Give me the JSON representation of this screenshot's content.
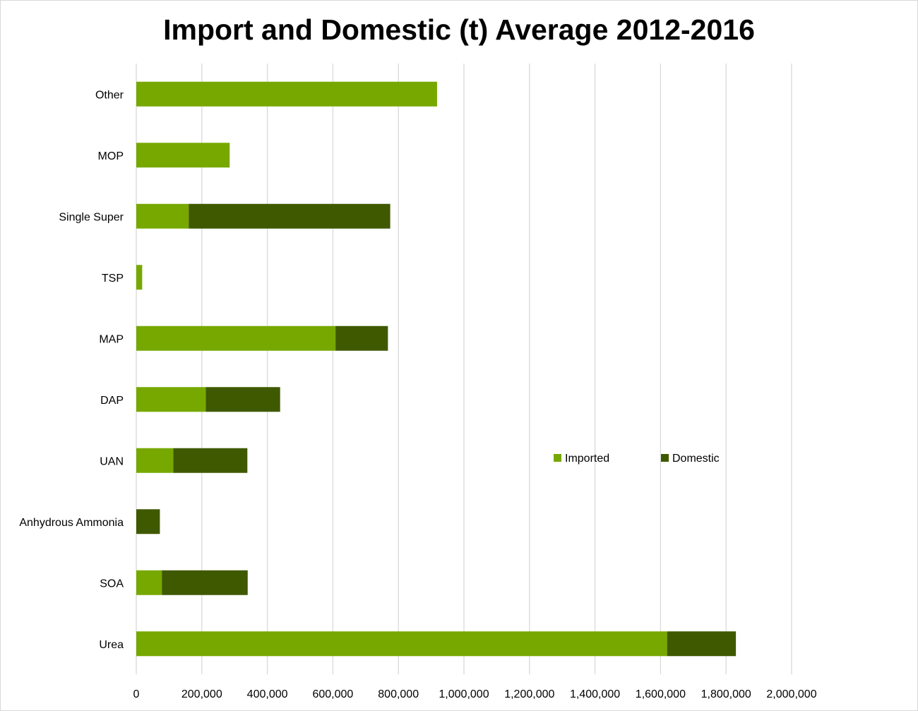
{
  "chart_data": {
    "type": "bar",
    "orientation": "horizontal",
    "stacked": true,
    "title": "Import and Domestic (t) Average 2012-2016",
    "xlabel": "",
    "ylabel": "",
    "xlim": [
      0,
      2000000
    ],
    "x_ticks": [
      "0",
      "200,000",
      "400,000",
      "600,000",
      "800,000",
      "1,000,000",
      "1,200,000",
      "1,400,000",
      "1,600,000",
      "1,800,000",
      "2,000,000"
    ],
    "categories": [
      "Other",
      "MOP",
      "Single Super",
      "TSP",
      "MAP",
      "DAP",
      "UAN",
      "Anhydrous Ammonia",
      "SOA",
      "Urea"
    ],
    "series": [
      {
        "name": "Imported",
        "color": "#77a800",
        "values": [
          918000,
          285000,
          160000,
          18000,
          608000,
          212000,
          113000,
          0,
          78000,
          1620000
        ]
      },
      {
        "name": "Domestic",
        "color": "#3f5900",
        "values": [
          0,
          0,
          615000,
          0,
          160000,
          227000,
          226000,
          72000,
          262000,
          210000
        ]
      }
    ],
    "legend_position": "right-middle",
    "grid": true
  }
}
